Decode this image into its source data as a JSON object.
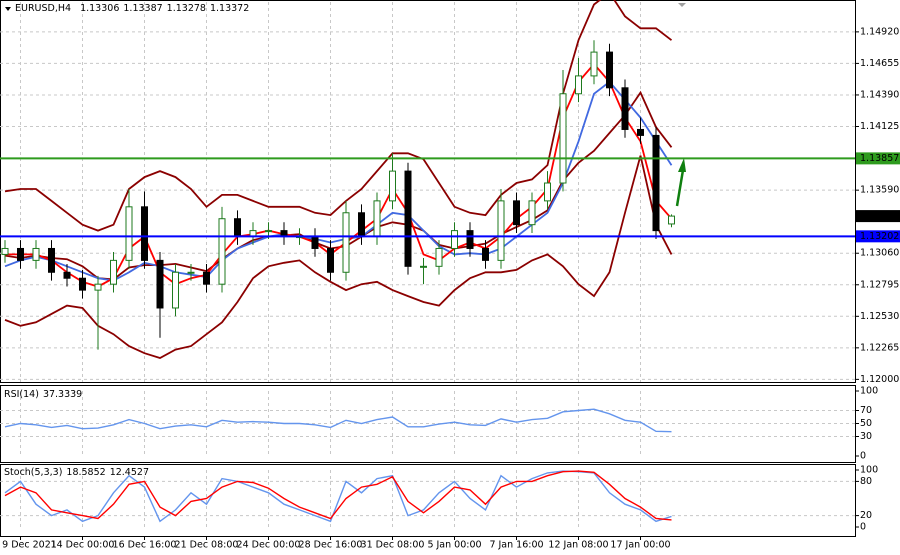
{
  "chart_data": [
    {
      "type": "candlestick",
      "title": "EURUSD,H4",
      "categories": [
        null,
        "9 Dec 2021",
        null,
        null,
        null,
        "14 Dec 00:00",
        null,
        null,
        null,
        "16 Dec 16:00",
        null,
        null,
        null,
        "21 Dec 08:00",
        null,
        null,
        null,
        "24 Dec 00:00",
        null,
        null,
        null,
        "28 Dec 16:00",
        null,
        null,
        null,
        "31 Dec 08:00",
        null,
        null,
        null,
        "5 Jan 00:00",
        null,
        null,
        null,
        "7 Jan 16:00",
        null,
        null,
        null,
        "12 Jan 08:00",
        null,
        null,
        null,
        "17 Jan 00:00",
        null,
        null
      ],
      "open": [
        1.1305,
        1.131,
        1.13,
        1.131,
        1.129,
        1.1285,
        1.1275,
        1.128,
        1.13,
        1.1345,
        1.13,
        1.126,
        1.129,
        1.129,
        1.128,
        1.1335,
        1.132,
        1.1325,
        1.1325,
        1.132,
        1.132,
        1.131,
        1.129,
        1.134,
        1.132,
        1.135,
        1.1375,
        1.1295,
        1.1295,
        1.131,
        1.1325,
        1.131,
        1.13,
        1.135,
        1.133,
        1.135,
        1.1365,
        1.144,
        1.1455,
        1.1475,
        1.1445,
        1.141,
        1.1405,
        1.13306
      ],
      "high": [
        1.1317,
        1.1317,
        1.1317,
        1.1317,
        1.1297,
        1.1292,
        1.1287,
        1.1307,
        1.136,
        1.1358,
        1.1307,
        1.1297,
        1.1297,
        1.1297,
        1.1345,
        1.1342,
        1.1332,
        1.1332,
        1.1332,
        1.1327,
        1.1327,
        1.1317,
        1.135,
        1.1347,
        1.1357,
        1.139,
        1.1382,
        1.1302,
        1.1317,
        1.1332,
        1.1332,
        1.1317,
        1.136,
        1.1357,
        1.1357,
        1.1375,
        1.146,
        1.147,
        1.1485,
        1.1482,
        1.1452,
        1.142,
        1.1412,
        1.13387
      ],
      "low": [
        1.1298,
        1.1293,
        1.1293,
        1.1283,
        1.1278,
        1.1268,
        1.1225,
        1.1273,
        1.1293,
        1.1293,
        1.1235,
        1.1253,
        1.1283,
        1.1273,
        1.1273,
        1.1313,
        1.1313,
        1.1318,
        1.1313,
        1.1313,
        1.1303,
        1.1283,
        1.1283,
        1.1313,
        1.1313,
        1.1343,
        1.1288,
        1.128,
        1.1288,
        1.1303,
        1.1303,
        1.1293,
        1.1293,
        1.1323,
        1.1323,
        1.1343,
        1.1358,
        1.1433,
        1.1448,
        1.1438,
        1.1403,
        1.1398,
        1.1318,
        1.13278
      ],
      "close": [
        1.131,
        1.13,
        1.131,
        1.129,
        1.1285,
        1.1275,
        1.128,
        1.13,
        1.1345,
        1.13,
        1.126,
        1.129,
        1.129,
        1.128,
        1.1335,
        1.132,
        1.1325,
        1.1325,
        1.132,
        1.132,
        1.131,
        1.129,
        1.134,
        1.132,
        1.135,
        1.1375,
        1.1295,
        1.1295,
        1.131,
        1.1325,
        1.131,
        1.13,
        1.135,
        1.133,
        1.135,
        1.1365,
        1.144,
        1.1455,
        1.1475,
        1.1445,
        1.141,
        1.1405,
        1.1325,
        1.13372
      ],
      "up_color": "#1e7a1e",
      "down_color": "#000000",
      "series": [
        {
          "color": "#8b0000",
          "values": [
            1.1358,
            1.136,
            1.136,
            1.135,
            1.134,
            1.133,
            1.1325,
            1.133,
            1.136,
            1.137,
            1.1375,
            1.137,
            1.136,
            1.1345,
            1.1355,
            1.1355,
            1.135,
            1.1345,
            1.1345,
            1.1345,
            1.134,
            1.1338,
            1.135,
            1.136,
            1.1375,
            1.139,
            1.139,
            1.1385,
            1.1365,
            1.1345,
            1.134,
            1.1338,
            1.1355,
            1.1365,
            1.1368,
            1.138,
            1.144,
            1.1485,
            1.1515,
            1.1525,
            1.1505,
            1.1495,
            1.1495,
            1.1485
          ]
        },
        {
          "color": "#8b0000",
          "values": [
            1.125,
            1.1245,
            1.1248,
            1.1255,
            1.1262,
            1.126,
            1.1245,
            1.1238,
            1.1228,
            1.1222,
            1.1218,
            1.1225,
            1.1228,
            1.1238,
            1.1248,
            1.1265,
            1.1285,
            1.1295,
            1.1298,
            1.13,
            1.129,
            1.1282,
            1.1275,
            1.128,
            1.1282,
            1.1275,
            1.127,
            1.1265,
            1.1262,
            1.1275,
            1.1285,
            1.129,
            1.129,
            1.1292,
            1.13,
            1.1305,
            1.1295,
            1.128,
            1.127,
            1.129,
            1.134,
            1.1388,
            1.133,
            1.1305
          ]
        },
        {
          "color": "#8b0000",
          "values": [
            1.1304,
            1.1302,
            1.1304,
            1.1302,
            1.1301,
            1.1295,
            1.1285,
            1.1284,
            1.1294,
            1.1296,
            1.1296,
            1.1297,
            1.1294,
            1.1291,
            1.1301,
            1.131,
            1.1317,
            1.132,
            1.1321,
            1.1322,
            1.1315,
            1.131,
            1.1312,
            1.132,
            1.1328,
            1.1332,
            1.133,
            1.1325,
            1.1313,
            1.131,
            1.1312,
            1.1314,
            1.1322,
            1.1328,
            1.1334,
            1.1342,
            1.1367,
            1.1382,
            1.1392,
            1.1407,
            1.1422,
            1.1441,
            1.1412,
            1.1395
          ]
        },
        {
          "color": "#4169e1",
          "values": [
            1.1295,
            1.13,
            1.1303,
            1.13,
            1.1295,
            1.129,
            1.1285,
            1.1283,
            1.129,
            1.1298,
            1.1295,
            1.129,
            1.1288,
            1.1286,
            1.13,
            1.131,
            1.1315,
            1.132,
            1.1322,
            1.132,
            1.1318,
            1.1315,
            1.1318,
            1.132,
            1.133,
            1.134,
            1.1338,
            1.1325,
            1.1312,
            1.1305,
            1.1306,
            1.1305,
            1.131,
            1.132,
            1.133,
            1.134,
            1.1365,
            1.14,
            1.144,
            1.145,
            1.1435,
            1.142,
            1.14,
            1.138
          ]
        },
        {
          "color": "#ff0000",
          "values": [
            1.1305,
            1.1305,
            1.1305,
            1.13,
            1.129,
            1.1282,
            1.1278,
            1.1285,
            1.131,
            1.132,
            1.129,
            1.128,
            1.1285,
            1.1288,
            1.1305,
            1.132,
            1.1322,
            1.1325,
            1.1322,
            1.132,
            1.1315,
            1.1305,
            1.1315,
            1.1325,
            1.1335,
            1.136,
            1.134,
            1.1305,
            1.13,
            1.131,
            1.1315,
            1.131,
            1.132,
            1.1335,
            1.1345,
            1.136,
            1.142,
            1.145,
            1.1465,
            1.145,
            1.142,
            1.14,
            1.135,
            1.1335
          ]
        }
      ],
      "levels": [
        {
          "value": 1.13857,
          "color": "#2e9b1e"
        },
        {
          "value": 1.13202,
          "color": "#0000ff"
        }
      ],
      "ylim": [
        1.11978,
        1.15171
      ],
      "yticks": [
        {
          "value": 1.12,
          "label": "1.12000"
        },
        1.12265,
        {
          "value": 1.1253,
          "label": "1.12530"
        },
        1.12795,
        {
          "value": 1.1306,
          "label": "1.13060"
        },
        {
          "value": 1.1359,
          "label": "1.13590"
        },
        1.14125,
        {
          "value": 1.1439,
          "label": "1.14390"
        },
        1.14655,
        {
          "value": 1.1492,
          "label": "1.14920"
        }
      ],
      "grid": true
    },
    {
      "type": "line",
      "title": "RSI(14)",
      "series": [
        {
          "color": "#6495ed",
          "values": [
            45,
            50,
            48,
            44,
            47,
            42,
            43,
            48,
            56,
            50,
            42,
            46,
            48,
            45,
            55,
            52,
            53,
            52,
            50,
            50,
            48,
            44,
            55,
            50,
            56,
            60,
            45,
            45,
            49,
            52,
            48,
            47,
            57,
            52,
            56,
            58,
            68,
            70,
            72,
            65,
            55,
            52,
            38,
            37.3339
          ]
        }
      ],
      "ylim": [
        0,
        100
      ],
      "yticks": [
        0,
        30,
        50,
        70,
        100
      ],
      "grid": true
    },
    {
      "type": "line",
      "title": "Stoch(5,3,3)",
      "series": [
        {
          "color": "#6495ed",
          "values": [
            60,
            80,
            40,
            20,
            30,
            10,
            20,
            60,
            90,
            70,
            10,
            30,
            60,
            40,
            85,
            80,
            70,
            60,
            40,
            30,
            20,
            10,
            80,
            60,
            85,
            90,
            20,
            30,
            60,
            80,
            50,
            30,
            90,
            70,
            85,
            95,
            98,
            97,
            95,
            60,
            40,
            30,
            10,
            18.5852
          ]
        },
        {
          "color": "#ff0000",
          "values": [
            55,
            70,
            60,
            30,
            25,
            20,
            15,
            40,
            75,
            80,
            35,
            20,
            45,
            50,
            70,
            80,
            78,
            68,
            50,
            35,
            25,
            15,
            50,
            70,
            75,
            88,
            45,
            25,
            45,
            70,
            65,
            40,
            70,
            80,
            80,
            90,
            97,
            98,
            96,
            75,
            50,
            35,
            15,
            12.4527
          ]
        }
      ],
      "ylim": [
        0,
        100
      ],
      "yticks": [
        0,
        20,
        80,
        100
      ],
      "grid": true
    }
  ]
}
